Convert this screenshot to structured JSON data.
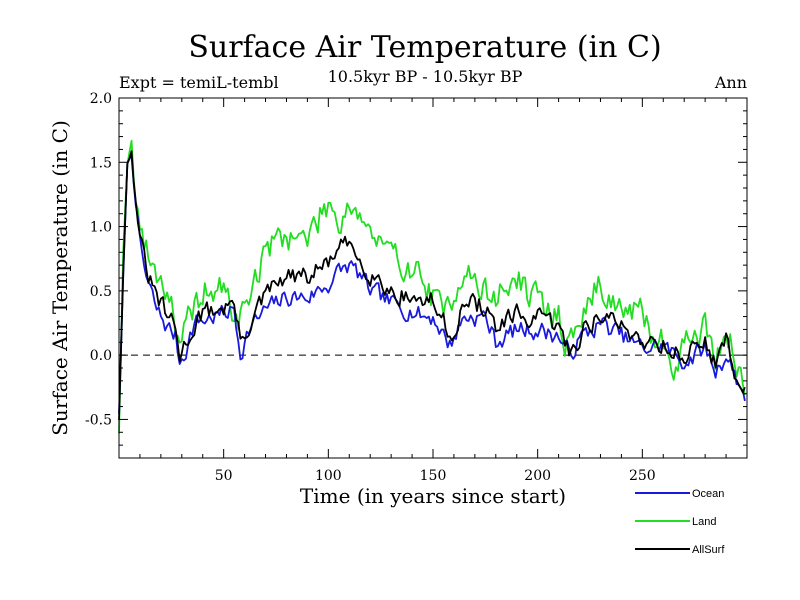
{
  "chart_data": {
    "type": "line",
    "title": "Surface Air Temperature (in C)",
    "subtitle": "10.5kyr BP - 10.5kyr BP",
    "left_annotation": "Expt = temiL-tembl",
    "right_annotation": "Ann",
    "xlabel": "Time (in years since start)",
    "ylabel": "Surface Air Temperature (in C)",
    "xlim": [
      0,
      300
    ],
    "ylim": [
      -0.8,
      2.0
    ],
    "xticks": [
      50,
      100,
      150,
      200,
      250
    ],
    "yticks": [
      -0.5,
      0.0,
      0.5,
      1.0,
      1.5,
      2.0
    ],
    "ytick_labels": [
      "-0.5",
      "0.0",
      "0.5",
      "1.0",
      "1.5",
      "2.0"
    ],
    "reference_line": {
      "y": 0.0,
      "style": "dashed"
    },
    "series": [
      {
        "name": "Ocean",
        "color": "#1a1adc",
        "anchors": [
          [
            0,
            -0.45
          ],
          [
            2,
            0.6
          ],
          [
            4,
            1.5
          ],
          [
            6,
            1.55
          ],
          [
            8,
            1.25
          ],
          [
            10,
            0.85
          ],
          [
            13,
            0.6
          ],
          [
            18,
            0.35
          ],
          [
            23,
            0.22
          ],
          [
            27,
            0.15
          ],
          [
            29,
            -0.05
          ],
          [
            32,
            0.05
          ],
          [
            36,
            0.25
          ],
          [
            45,
            0.3
          ],
          [
            55,
            0.35
          ],
          [
            58,
            0.02
          ],
          [
            62,
            0.2
          ],
          [
            70,
            0.35
          ],
          [
            80,
            0.45
          ],
          [
            90,
            0.45
          ],
          [
            100,
            0.55
          ],
          [
            105,
            0.65
          ],
          [
            110,
            0.7
          ],
          [
            115,
            0.62
          ],
          [
            120,
            0.5
          ],
          [
            130,
            0.4
          ],
          [
            140,
            0.35
          ],
          [
            145,
            0.3
          ],
          [
            150,
            0.3
          ],
          [
            158,
            0.08
          ],
          [
            165,
            0.3
          ],
          [
            175,
            0.3
          ],
          [
            180,
            0.1
          ],
          [
            190,
            0.2
          ],
          [
            200,
            0.2
          ],
          [
            210,
            0.15
          ],
          [
            215,
            0.0
          ],
          [
            220,
            0.12
          ],
          [
            230,
            0.25
          ],
          [
            240,
            0.15
          ],
          [
            250,
            0.05
          ],
          [
            260,
            0.08
          ],
          [
            265,
            0.0
          ],
          [
            270,
            -0.05
          ],
          [
            280,
            0.05
          ],
          [
            285,
            -0.12
          ],
          [
            290,
            0.0
          ],
          [
            295,
            -0.18
          ],
          [
            299,
            -0.32
          ]
        ],
        "noise": 0.12,
        "seed": 7
      },
      {
        "name": "Land",
        "color": "#22dd22",
        "anchors": [
          [
            0,
            -0.6
          ],
          [
            2,
            0.8
          ],
          [
            4,
            1.5
          ],
          [
            6,
            1.65
          ],
          [
            8,
            1.3
          ],
          [
            10,
            1.0
          ],
          [
            14,
            0.75
          ],
          [
            20,
            0.6
          ],
          [
            25,
            0.45
          ],
          [
            29,
            0.0
          ],
          [
            33,
            0.25
          ],
          [
            40,
            0.5
          ],
          [
            50,
            0.5
          ],
          [
            57,
            0.25
          ],
          [
            65,
            0.6
          ],
          [
            72,
            0.85
          ],
          [
            80,
            0.95
          ],
          [
            90,
            0.9
          ],
          [
            95,
            1.05
          ],
          [
            100,
            1.2
          ],
          [
            105,
            1.05
          ],
          [
            110,
            1.2
          ],
          [
            115,
            1.1
          ],
          [
            120,
            0.95
          ],
          [
            125,
            0.85
          ],
          [
            130,
            0.75
          ],
          [
            140,
            0.7
          ],
          [
            148,
            0.5
          ],
          [
            155,
            0.3
          ],
          [
            165,
            0.7
          ],
          [
            172,
            0.5
          ],
          [
            180,
            0.45
          ],
          [
            190,
            0.6
          ],
          [
            200,
            0.4
          ],
          [
            210,
            0.3
          ],
          [
            215,
            0.05
          ],
          [
            225,
            0.45
          ],
          [
            230,
            0.55
          ],
          [
            240,
            0.35
          ],
          [
            250,
            0.3
          ],
          [
            255,
            0.15
          ],
          [
            260,
            0.1
          ],
          [
            267,
            -0.1
          ],
          [
            270,
            0.12
          ],
          [
            280,
            0.2
          ],
          [
            285,
            0.0
          ],
          [
            290,
            0.25
          ],
          [
            295,
            -0.1
          ],
          [
            299,
            -0.35
          ]
        ],
        "noise": 0.2,
        "seed": 19
      },
      {
        "name": "AllSurf",
        "color": "#000000",
        "anchors": [
          [
            0,
            -0.5
          ],
          [
            2,
            0.65
          ],
          [
            4,
            1.5
          ],
          [
            6,
            1.55
          ],
          [
            8,
            1.25
          ],
          [
            10,
            0.9
          ],
          [
            13,
            0.65
          ],
          [
            18,
            0.45
          ],
          [
            23,
            0.3
          ],
          [
            27,
            0.2
          ],
          [
            29,
            -0.02
          ],
          [
            32,
            0.1
          ],
          [
            38,
            0.3
          ],
          [
            45,
            0.35
          ],
          [
            55,
            0.4
          ],
          [
            58,
            0.1
          ],
          [
            64,
            0.3
          ],
          [
            72,
            0.5
          ],
          [
            80,
            0.6
          ],
          [
            90,
            0.6
          ],
          [
            100,
            0.72
          ],
          [
            105,
            0.82
          ],
          [
            110,
            0.85
          ],
          [
            115,
            0.75
          ],
          [
            120,
            0.65
          ],
          [
            130,
            0.5
          ],
          [
            140,
            0.45
          ],
          [
            145,
            0.42
          ],
          [
            150,
            0.42
          ],
          [
            158,
            0.15
          ],
          [
            165,
            0.4
          ],
          [
            175,
            0.38
          ],
          [
            180,
            0.2
          ],
          [
            190,
            0.3
          ],
          [
            200,
            0.28
          ],
          [
            210,
            0.22
          ],
          [
            215,
            0.02
          ],
          [
            222,
            0.2
          ],
          [
            230,
            0.32
          ],
          [
            240,
            0.22
          ],
          [
            250,
            0.12
          ],
          [
            260,
            0.1
          ],
          [
            265,
            0.02
          ],
          [
            270,
            0.0
          ],
          [
            280,
            0.1
          ],
          [
            285,
            -0.05
          ],
          [
            290,
            0.1
          ],
          [
            295,
            -0.15
          ],
          [
            299,
            -0.3
          ]
        ],
        "noise": 0.13,
        "seed": 31
      }
    ],
    "legend": {
      "placement": "bottom-right",
      "entries": [
        "Ocean",
        "Land",
        "AllSurf"
      ]
    }
  }
}
